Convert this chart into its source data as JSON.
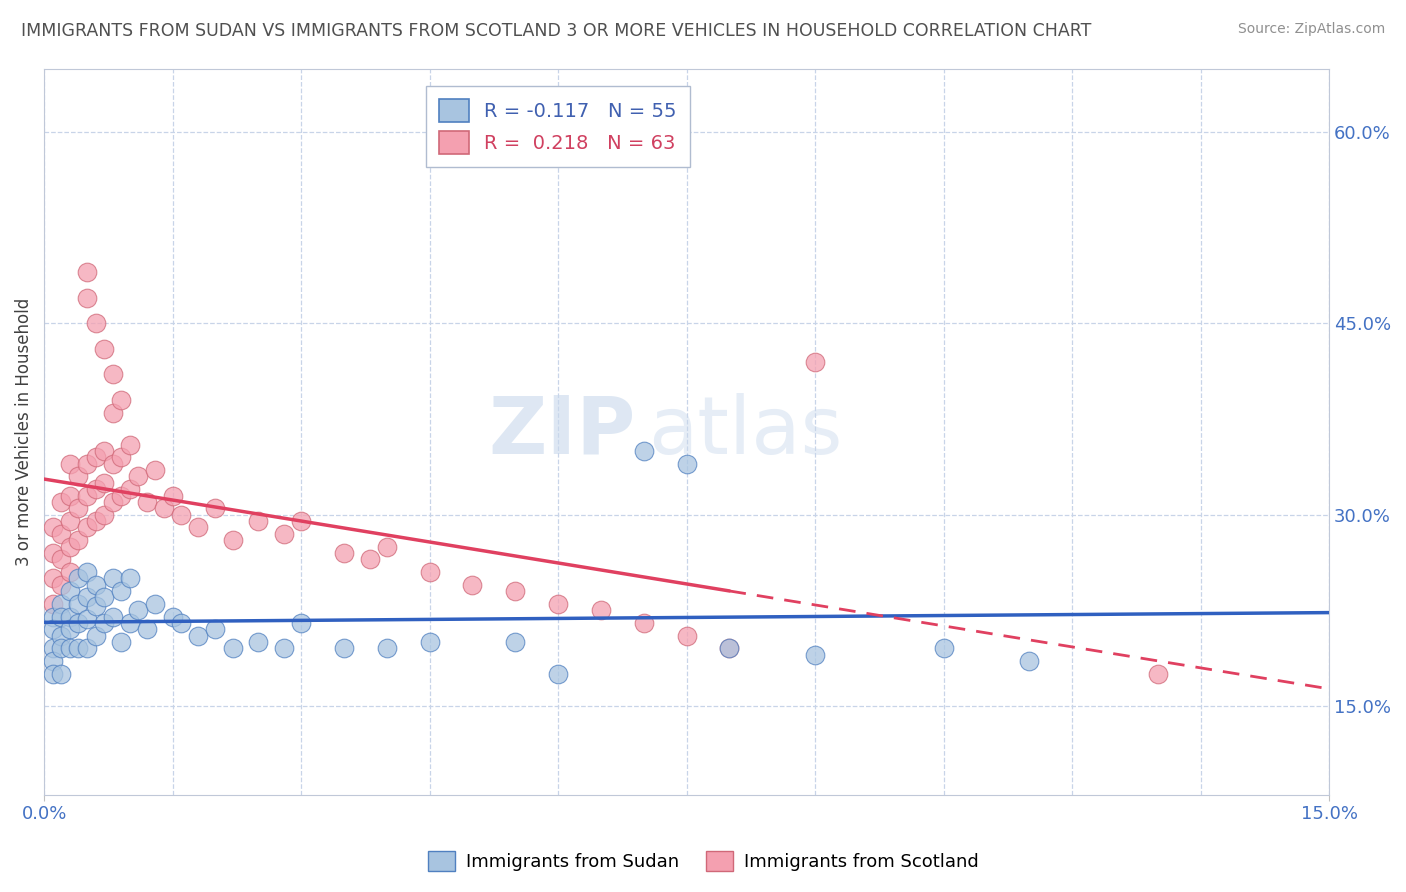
{
  "title": "IMMIGRANTS FROM SUDAN VS IMMIGRANTS FROM SCOTLAND 3 OR MORE VEHICLES IN HOUSEHOLD CORRELATION CHART",
  "source": "Source: ZipAtlas.com",
  "ylabel": "3 or more Vehicles in Household",
  "color_sudan": "#a8c4e0",
  "color_scotland": "#f4a0b0",
  "trendline_sudan_color": "#3060c0",
  "trendline_scotland_color": "#e04060",
  "background_color": "#ffffff",
  "title_color": "#505050",
  "title_fontsize": 12.5,
  "watermark_text": "ZIPatlas",
  "legend_entry1": "R = -0.117   N = 55",
  "legend_entry2": "R =  0.218   N = 63",
  "legend_label1": "Immigrants from Sudan",
  "legend_label2": "Immigrants from Scotland",
  "xmin": 0.0,
  "xmax": 0.15,
  "ymin": 0.08,
  "ymax": 0.65,
  "yticks": [
    0.15,
    0.3,
    0.45,
    0.6
  ],
  "ytick_labels": [
    "15.0%",
    "30.0%",
    "45.0%",
    "60.0%"
  ],
  "sudan_x": [
    0.001,
    0.001,
    0.001,
    0.001,
    0.001,
    0.002,
    0.002,
    0.002,
    0.002,
    0.002,
    0.003,
    0.003,
    0.003,
    0.003,
    0.004,
    0.004,
    0.004,
    0.004,
    0.005,
    0.005,
    0.005,
    0.005,
    0.006,
    0.006,
    0.006,
    0.007,
    0.007,
    0.008,
    0.008,
    0.009,
    0.009,
    0.01,
    0.01,
    0.011,
    0.012,
    0.013,
    0.015,
    0.016,
    0.018,
    0.02,
    0.022,
    0.025,
    0.028,
    0.03,
    0.035,
    0.04,
    0.045,
    0.055,
    0.06,
    0.07,
    0.075,
    0.08,
    0.09,
    0.105,
    0.115
  ],
  "sudan_y": [
    0.22,
    0.21,
    0.195,
    0.185,
    0.175,
    0.23,
    0.22,
    0.205,
    0.195,
    0.175,
    0.24,
    0.22,
    0.21,
    0.195,
    0.25,
    0.23,
    0.215,
    0.195,
    0.255,
    0.235,
    0.218,
    0.195,
    0.245,
    0.228,
    0.205,
    0.235,
    0.215,
    0.25,
    0.22,
    0.24,
    0.2,
    0.25,
    0.215,
    0.225,
    0.21,
    0.23,
    0.22,
    0.215,
    0.205,
    0.21,
    0.195,
    0.2,
    0.195,
    0.215,
    0.195,
    0.195,
    0.2,
    0.2,
    0.175,
    0.35,
    0.34,
    0.195,
    0.19,
    0.195,
    0.185
  ],
  "scotland_x": [
    0.001,
    0.001,
    0.001,
    0.001,
    0.002,
    0.002,
    0.002,
    0.002,
    0.003,
    0.003,
    0.003,
    0.003,
    0.003,
    0.004,
    0.004,
    0.004,
    0.005,
    0.005,
    0.005,
    0.006,
    0.006,
    0.006,
    0.007,
    0.007,
    0.007,
    0.008,
    0.008,
    0.009,
    0.009,
    0.01,
    0.01,
    0.011,
    0.012,
    0.013,
    0.014,
    0.015,
    0.016,
    0.018,
    0.02,
    0.022,
    0.025,
    0.028,
    0.03,
    0.035,
    0.038,
    0.04,
    0.045,
    0.05,
    0.055,
    0.06,
    0.065,
    0.07,
    0.075,
    0.08,
    0.005,
    0.005,
    0.006,
    0.007,
    0.008,
    0.008,
    0.009,
    0.09,
    0.13
  ],
  "scotland_y": [
    0.29,
    0.27,
    0.25,
    0.23,
    0.31,
    0.285,
    0.265,
    0.245,
    0.34,
    0.315,
    0.295,
    0.275,
    0.255,
    0.33,
    0.305,
    0.28,
    0.34,
    0.315,
    0.29,
    0.345,
    0.32,
    0.295,
    0.35,
    0.325,
    0.3,
    0.34,
    0.31,
    0.345,
    0.315,
    0.355,
    0.32,
    0.33,
    0.31,
    0.335,
    0.305,
    0.315,
    0.3,
    0.29,
    0.305,
    0.28,
    0.295,
    0.285,
    0.295,
    0.27,
    0.265,
    0.275,
    0.255,
    0.245,
    0.24,
    0.23,
    0.225,
    0.215,
    0.205,
    0.195,
    0.49,
    0.47,
    0.45,
    0.43,
    0.38,
    0.41,
    0.39,
    0.42,
    0.175
  ]
}
